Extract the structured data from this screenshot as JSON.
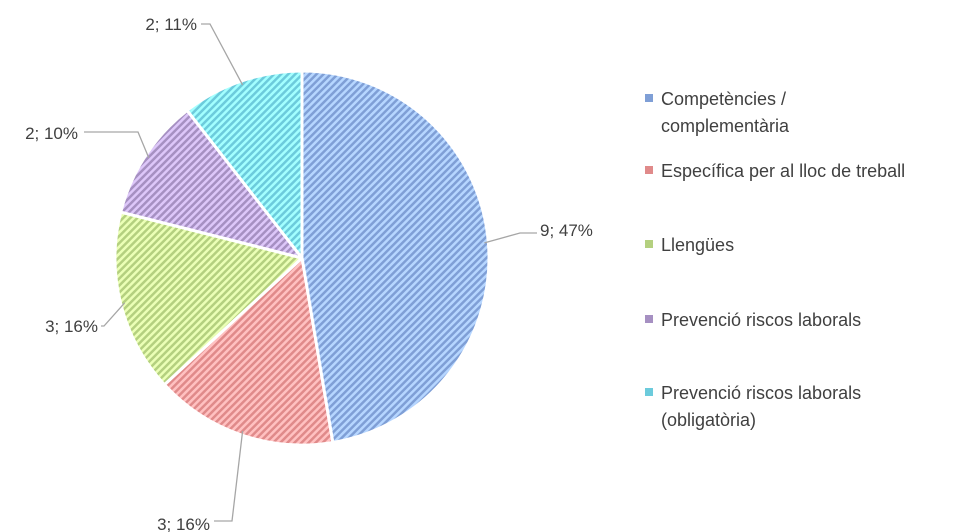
{
  "chart_data": {
    "type": "pie",
    "title": "",
    "series": [
      {
        "values": [
          9,
          3,
          3,
          2,
          2
        ],
        "labels": [
          "9; 47%",
          "3; 16%",
          "3; 16%",
          "2; 10%",
          "2; 11%"
        ],
        "percents": [
          47,
          16,
          16,
          10,
          11
        ]
      }
    ],
    "categories": [
      "Competències / complementària",
      "Específica per al lloc de treball",
      "Llengües",
      "Prevenció riscos laborals",
      "Prevenció riscos laborals (obligatòria)"
    ],
    "colors": [
      "#7f9fd6",
      "#e08a8a",
      "#b4d07f",
      "#a690c2",
      "#6ccbdc"
    ],
    "fill_pattern": "diagonal-hatch",
    "legend_position": "right"
  }
}
